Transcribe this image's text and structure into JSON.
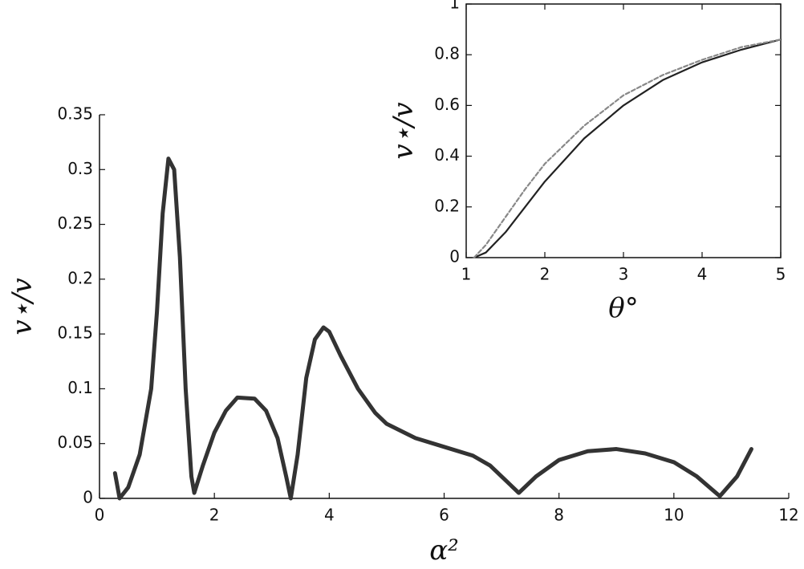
{
  "chart_data": [
    {
      "type": "line",
      "xlabel": "α²",
      "ylabel": "v⋆/v",
      "x": [
        0.27,
        0.35,
        0.5,
        0.7,
        0.9,
        1.0,
        1.1,
        1.2,
        1.3,
        1.4,
        1.5,
        1.6,
        1.65,
        1.8,
        2.0,
        2.2,
        2.4,
        2.7,
        2.9,
        3.1,
        3.25,
        3.33,
        3.45,
        3.6,
        3.75,
        3.9,
        4.0,
        4.2,
        4.5,
        4.8,
        5.0,
        5.5,
        6.0,
        6.5,
        6.8,
        7.0,
        7.3,
        7.6,
        8.0,
        8.5,
        9.0,
        9.5,
        10.0,
        10.4,
        10.8,
        11.1,
        11.35
      ],
      "series": [
        {
          "color": "#333333",
          "values": [
            0.023,
            0.0,
            0.01,
            0.04,
            0.1,
            0.17,
            0.26,
            0.31,
            0.3,
            0.22,
            0.1,
            0.02,
            0.005,
            0.03,
            0.06,
            0.08,
            0.092,
            0.091,
            0.08,
            0.055,
            0.02,
            0.0,
            0.04,
            0.11,
            0.145,
            0.156,
            0.152,
            0.13,
            0.1,
            0.078,
            0.068,
            0.055,
            0.047,
            0.039,
            0.03,
            0.02,
            0.005,
            0.02,
            0.035,
            0.043,
            0.045,
            0.041,
            0.033,
            0.02,
            0.002,
            0.02,
            0.045
          ]
        }
      ],
      "xlim": [
        0,
        12
      ],
      "xticks": [
        0,
        2,
        4,
        6,
        8,
        10,
        12
      ],
      "ylim": [
        0,
        0.35
      ],
      "yticks": [
        0,
        0.05,
        0.1,
        0.15,
        0.2,
        0.25,
        0.3,
        0.35
      ],
      "box": false
    },
    {
      "type": "line",
      "xlabel": "θ°",
      "ylabel": "v⋆/v",
      "x": [
        1.1,
        1.25,
        1.5,
        1.75,
        2,
        2.5,
        3,
        3.5,
        4,
        4.5,
        5
      ],
      "series": [
        {
          "color": "#222222",
          "style": "solid",
          "values": [
            0,
            0.02,
            0.1,
            0.2,
            0.3,
            0.47,
            0.6,
            0.7,
            0.77,
            0.82,
            0.86
          ]
        },
        {
          "color": "#888888",
          "style": "dashed",
          "values": [
            0,
            0.05,
            0.16,
            0.27,
            0.37,
            0.52,
            0.64,
            0.72,
            0.78,
            0.83,
            0.86
          ]
        }
      ],
      "xlim": [
        1,
        5
      ],
      "xticks": [
        1,
        2,
        3,
        4,
        5
      ],
      "ylim": [
        0,
        1
      ],
      "yticks": [
        0,
        0.2,
        0.4,
        0.6,
        0.8,
        1
      ],
      "box": true
    }
  ]
}
